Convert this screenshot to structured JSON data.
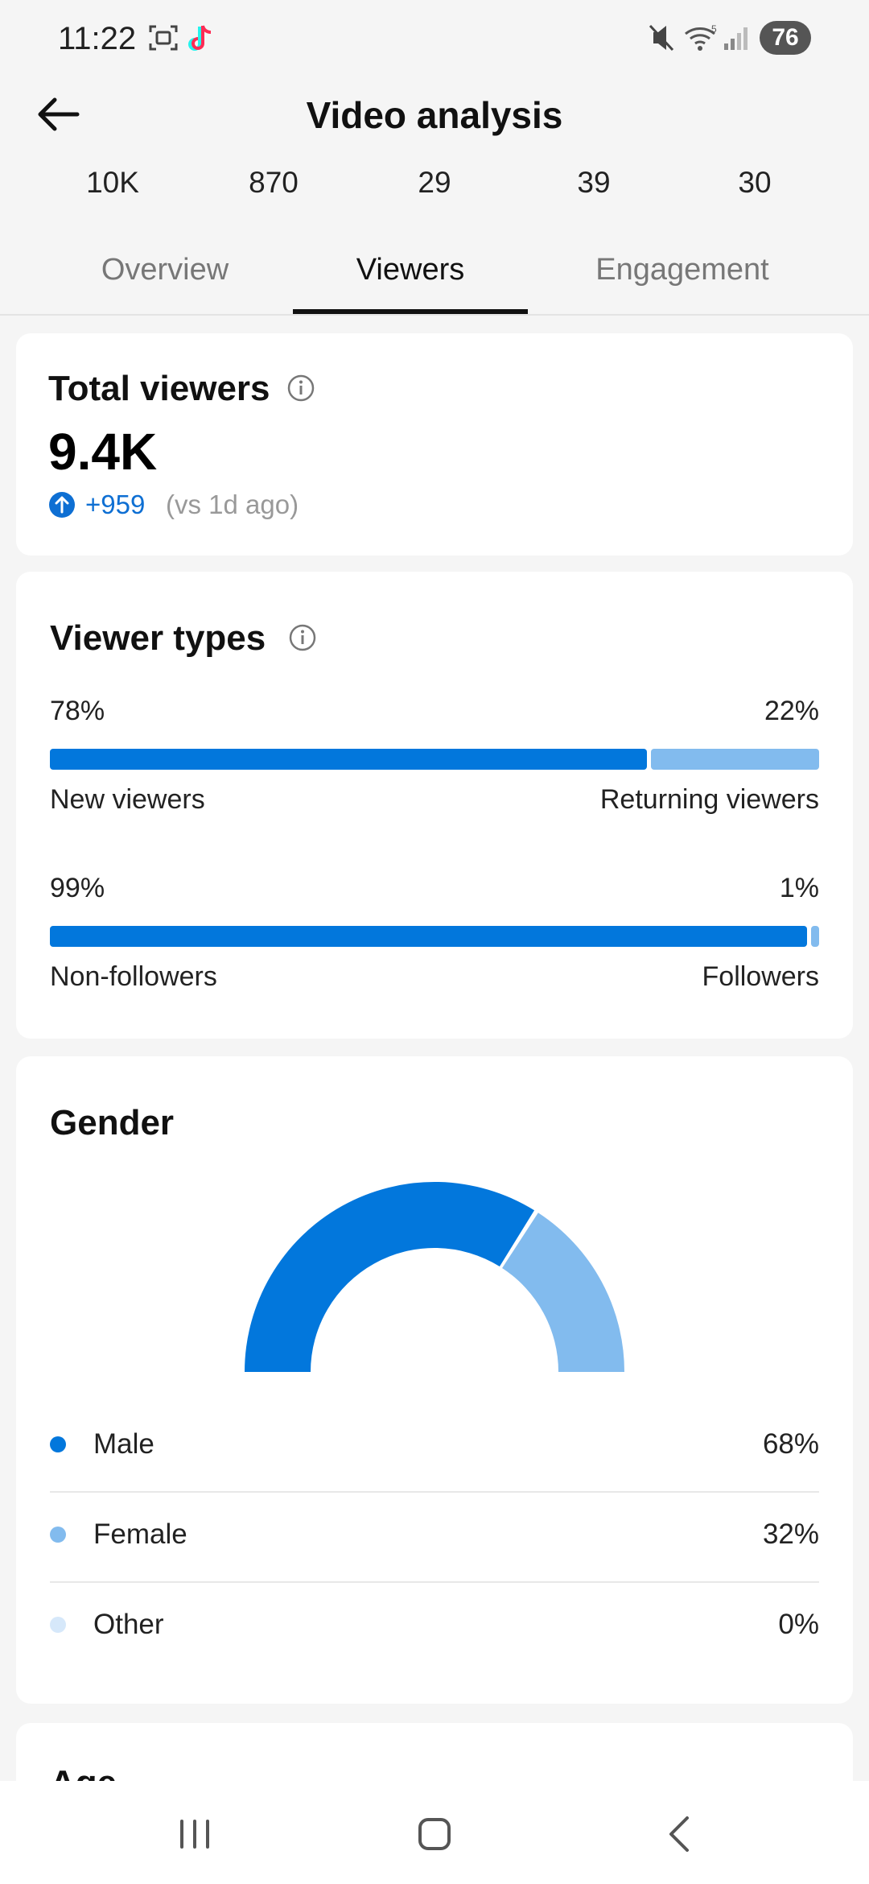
{
  "status": {
    "time": "11:22",
    "battery": "76",
    "icons": [
      "screenshot-icon",
      "tiktok-icon",
      "mute-icon",
      "wifi-icon",
      "signal-icon"
    ]
  },
  "header": {
    "title": "Video analysis",
    "stats": [
      "10K",
      "870",
      "29",
      "39",
      "30"
    ]
  },
  "tabs": [
    {
      "label": "Overview",
      "active": false
    },
    {
      "label": "Viewers",
      "active": true
    },
    {
      "label": "Engagement",
      "active": false
    }
  ],
  "total_viewers": {
    "title": "Total viewers",
    "value": "9.4K",
    "delta": "+959",
    "comparison": "(vs 1d ago)"
  },
  "viewer_types": {
    "title": "Viewer types",
    "rows": [
      {
        "left_pct": "78%",
        "right_pct": "22%",
        "left_label": "New viewers",
        "right_label": "Returning viewers",
        "left_value": 78
      },
      {
        "left_pct": "99%",
        "right_pct": "1%",
        "left_label": "Non-followers",
        "right_label": "Followers",
        "left_value": 99
      }
    ]
  },
  "gender": {
    "title": "Gender",
    "items": [
      {
        "name": "Male",
        "value": "68%",
        "color": "#0277dc"
      },
      {
        "name": "Female",
        "value": "32%",
        "color": "#82bbee"
      },
      {
        "name": "Other",
        "value": "0%",
        "color": "#d6e8fa"
      }
    ],
    "chart_values": [
      68,
      32,
      0
    ]
  },
  "age": {
    "title": "Age"
  },
  "colors": {
    "accent": "#0277dc",
    "accent_light": "#82bbee"
  }
}
